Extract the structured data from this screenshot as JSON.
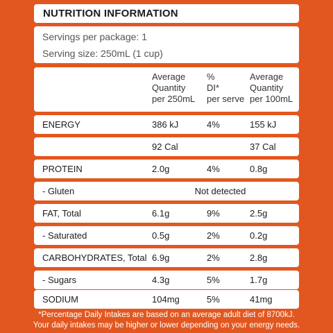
{
  "title": "NUTRITION INFORMATION",
  "servings": {
    "per_package": "Servings per package: 1",
    "serving_size": "Serving size: 250mL (1 cup)"
  },
  "headers": {
    "qty_line1": "Average",
    "qty_line2": "Quantity",
    "qty_line3": "per 250mL",
    "di_line1": "%",
    "di_line2": "DI*",
    "di_line3": "per serve",
    "per100_line1": "Average",
    "per100_line2": "Quantity",
    "per100_line3": "per 100mL"
  },
  "rows": [
    {
      "name": "ENERGY",
      "qty": "386 kJ",
      "di": "4%",
      "per100": "155 kJ"
    },
    {
      "name": "",
      "qty": "92 Cal",
      "di": "",
      "per100": "37 Cal"
    },
    {
      "name": "PROTEIN",
      "qty": "2.0g",
      "di": "4%",
      "per100": "0.8g"
    },
    {
      "name": "- Gluten",
      "span": "Not detected"
    },
    {
      "name": "FAT, Total",
      "qty": "6.1g",
      "di": "9%",
      "per100": "2.5g"
    },
    {
      "name": "- Saturated",
      "qty": "0.5g",
      "di": "2%",
      "per100": "0.2g"
    },
    {
      "name": "CARBOHYDRATES, Total",
      "qty": "6.9g",
      "di": "2%",
      "per100": "2.8g"
    },
    {
      "name": "- Sugars",
      "qty": "4.3g",
      "di": "5%",
      "per100": "1.7g"
    },
    {
      "name": "SODIUM",
      "qty": "104mg",
      "di": "5%",
      "per100": "41mg"
    }
  ],
  "footnote": {
    "line1": "*Percentage Daily Intakes are based on an average adult diet of 8700kJ.",
    "line2": "Your daily intakes may be higher or lower depending on your energy needs."
  },
  "colors": {
    "background": "#e2571f",
    "panel": "#ffffff"
  }
}
